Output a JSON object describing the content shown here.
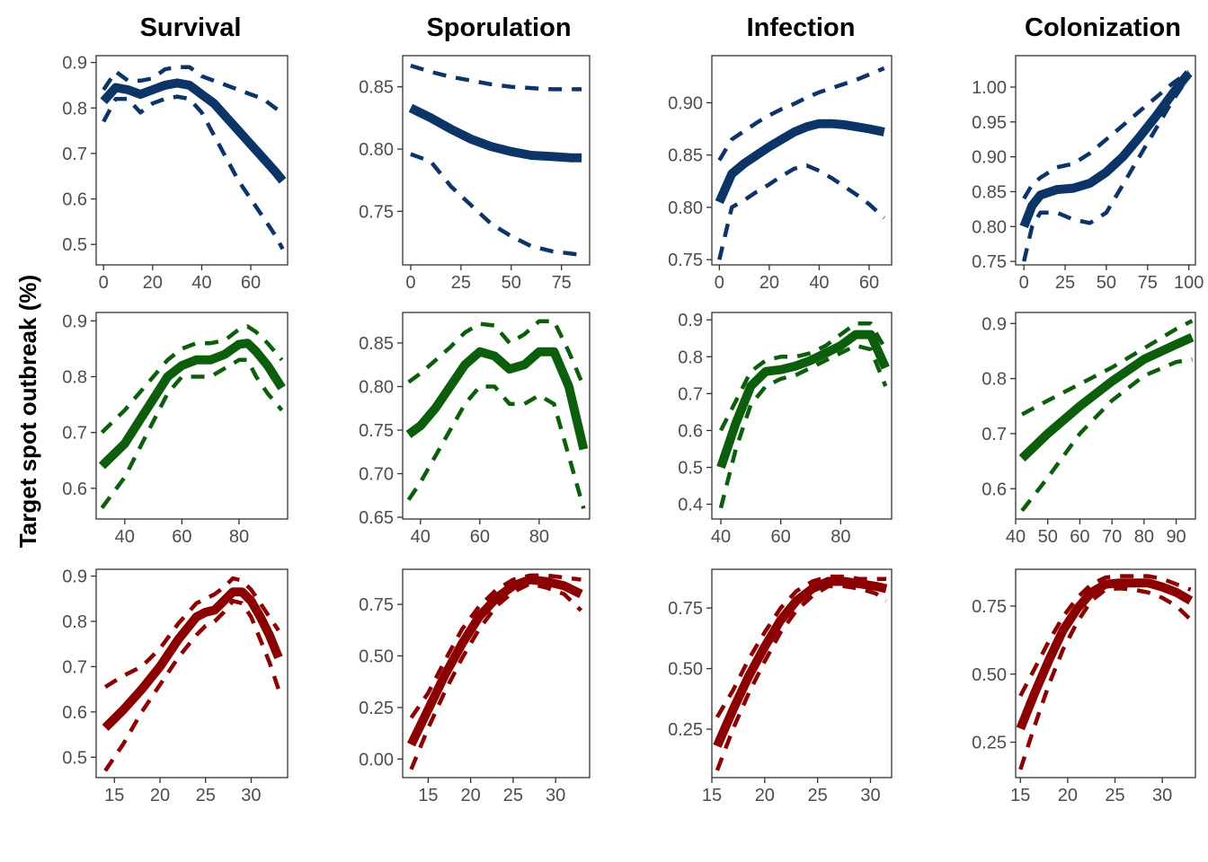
{
  "figure": {
    "column_titles": [
      "Survival",
      "Sporulation",
      "Infection",
      "Colonization"
    ],
    "y_axis_title": "Target spot outbreak (%)"
  },
  "colors": {
    "row1": "#0d3467",
    "row2": "#0c5e0c",
    "row3": "#8b0000"
  },
  "chart_data": [
    {
      "type": "line",
      "row": 1,
      "column": "Survival",
      "xlim": [
        -3,
        75
      ],
      "ylim": [
        0.455,
        0.915
      ],
      "xticks": [
        0,
        20,
        40,
        60
      ],
      "yticks": [
        0.5,
        0.6,
        0.7,
        0.8,
        0.9
      ],
      "ytick_labels": [
        "0.5",
        "0.6",
        "0.7",
        "0.8",
        "0.9"
      ],
      "x": [
        0,
        5,
        10,
        15,
        20,
        25,
        30,
        35,
        40,
        45,
        50,
        55,
        60,
        65,
        70,
        73
      ],
      "fit": [
        0.815,
        0.845,
        0.84,
        0.83,
        0.84,
        0.85,
        0.855,
        0.85,
        0.83,
        0.81,
        0.78,
        0.75,
        0.72,
        0.69,
        0.66,
        0.64
      ],
      "lower": [
        0.77,
        0.82,
        0.82,
        0.79,
        0.81,
        0.82,
        0.825,
        0.82,
        0.79,
        0.74,
        0.69,
        0.64,
        0.6,
        0.56,
        0.52,
        0.49
      ],
      "upper": [
        0.84,
        0.88,
        0.86,
        0.86,
        0.865,
        0.885,
        0.89,
        0.89,
        0.87,
        0.86,
        0.85,
        0.84,
        0.83,
        0.82,
        0.8,
        0.79
      ]
    },
    {
      "type": "line",
      "row": 1,
      "column": "Sporulation",
      "xlim": [
        -4,
        89
      ],
      "ylim": [
        0.707,
        0.875
      ],
      "xticks": [
        0,
        25,
        50,
        75
      ],
      "yticks": [
        0.75,
        0.8,
        0.85
      ],
      "ytick_labels": [
        "0.75",
        "0.80",
        "0.85"
      ],
      "x": [
        0,
        10,
        20,
        30,
        40,
        50,
        60,
        70,
        80,
        85
      ],
      "fit": [
        0.833,
        0.825,
        0.816,
        0.808,
        0.802,
        0.798,
        0.795,
        0.794,
        0.793,
        0.793
      ],
      "lower": [
        0.796,
        0.79,
        0.77,
        0.755,
        0.74,
        0.73,
        0.722,
        0.718,
        0.716,
        0.715
      ],
      "upper": [
        0.867,
        0.862,
        0.858,
        0.855,
        0.852,
        0.85,
        0.849,
        0.848,
        0.848,
        0.848
      ]
    },
    {
      "type": "line",
      "row": 1,
      "column": "Infection",
      "xlim": [
        -3,
        69
      ],
      "ylim": [
        0.745,
        0.945
      ],
      "xticks": [
        0,
        20,
        40,
        60
      ],
      "yticks": [
        0.75,
        0.8,
        0.85,
        0.9
      ],
      "ytick_labels": [
        "0.75",
        "0.80",
        "0.85",
        "0.90"
      ],
      "x": [
        0,
        5,
        10,
        15,
        20,
        25,
        30,
        35,
        40,
        45,
        50,
        55,
        60,
        66
      ],
      "fit": [
        0.805,
        0.832,
        0.842,
        0.85,
        0.858,
        0.865,
        0.872,
        0.877,
        0.88,
        0.88,
        0.879,
        0.877,
        0.875,
        0.872
      ],
      "lower": [
        0.75,
        0.8,
        0.807,
        0.815,
        0.822,
        0.83,
        0.837,
        0.84,
        0.835,
        0.828,
        0.82,
        0.812,
        0.803,
        0.79
      ],
      "upper": [
        0.845,
        0.865,
        0.873,
        0.881,
        0.888,
        0.894,
        0.899,
        0.905,
        0.91,
        0.914,
        0.918,
        0.922,
        0.927,
        0.933
      ]
    },
    {
      "type": "line",
      "row": 1,
      "column": "Colonization",
      "xlim": [
        -5,
        104
      ],
      "ylim": [
        0.745,
        1.045
      ],
      "xticks": [
        0,
        25,
        50,
        75,
        100
      ],
      "yticks": [
        0.75,
        0.8,
        0.85,
        0.9,
        0.95,
        1.0
      ],
      "ytick_labels": [
        "0.75",
        "0.80",
        "0.85",
        "0.90",
        "0.95",
        "1.00"
      ],
      "x": [
        0,
        5,
        10,
        20,
        30,
        40,
        50,
        60,
        70,
        80,
        90,
        100
      ],
      "fit": [
        0.8,
        0.83,
        0.845,
        0.853,
        0.855,
        0.862,
        0.878,
        0.9,
        0.928,
        0.958,
        0.99,
        1.02
      ],
      "lower": [
        0.75,
        0.8,
        0.82,
        0.82,
        0.81,
        0.805,
        0.82,
        0.86,
        0.9,
        0.94,
        0.98,
        1.015
      ],
      "upper": [
        0.84,
        0.86,
        0.87,
        0.885,
        0.89,
        0.905,
        0.925,
        0.945,
        0.965,
        0.985,
        1.005,
        1.022
      ]
    },
    {
      "type": "line",
      "row": 2,
      "column": "Survival",
      "xlim": [
        30,
        97
      ],
      "ylim": [
        0.545,
        0.915
      ],
      "xticks": [
        40,
        60,
        80
      ],
      "yticks": [
        0.6,
        0.7,
        0.8,
        0.9
      ],
      "ytick_labels": [
        "0.6",
        "0.7",
        "0.8",
        "0.9"
      ],
      "x": [
        32,
        40,
        45,
        50,
        55,
        60,
        65,
        70,
        75,
        80,
        83,
        86,
        90,
        95
      ],
      "fit": [
        0.64,
        0.68,
        0.72,
        0.76,
        0.8,
        0.82,
        0.83,
        0.83,
        0.84,
        0.858,
        0.86,
        0.845,
        0.82,
        0.78
      ],
      "lower": [
        0.565,
        0.62,
        0.67,
        0.72,
        0.77,
        0.8,
        0.8,
        0.8,
        0.815,
        0.83,
        0.83,
        0.8,
        0.77,
        0.74
      ],
      "upper": [
        0.7,
        0.74,
        0.77,
        0.8,
        0.83,
        0.85,
        0.86,
        0.86,
        0.865,
        0.885,
        0.89,
        0.88,
        0.86,
        0.83
      ]
    },
    {
      "type": "line",
      "row": 2,
      "column": "Sporulation",
      "xlim": [
        34,
        97
      ],
      "ylim": [
        0.648,
        0.885
      ],
      "xticks": [
        40,
        60,
        80
      ],
      "yticks": [
        0.65,
        0.7,
        0.75,
        0.8,
        0.85
      ],
      "ytick_labels": [
        "0.65",
        "0.70",
        "0.75",
        "0.80",
        "0.85"
      ],
      "x": [
        36,
        40,
        45,
        50,
        55,
        60,
        65,
        70,
        75,
        80,
        85,
        90,
        95
      ],
      "fit": [
        0.745,
        0.755,
        0.775,
        0.8,
        0.825,
        0.84,
        0.835,
        0.82,
        0.825,
        0.84,
        0.84,
        0.8,
        0.728
      ],
      "lower": [
        0.67,
        0.69,
        0.72,
        0.75,
        0.78,
        0.8,
        0.8,
        0.78,
        0.78,
        0.79,
        0.78,
        0.72,
        0.66
      ],
      "upper": [
        0.805,
        0.815,
        0.83,
        0.845,
        0.862,
        0.872,
        0.87,
        0.85,
        0.86,
        0.875,
        0.875,
        0.84,
        0.8
      ]
    },
    {
      "type": "line",
      "row": 2,
      "column": "Infection",
      "xlim": [
        37,
        97
      ],
      "ylim": [
        0.36,
        0.92
      ],
      "xticks": [
        40,
        60,
        80
      ],
      "yticks": [
        0.4,
        0.5,
        0.6,
        0.7,
        0.8,
        0.9
      ],
      "ytick_labels": [
        "0.4",
        "0.5",
        "0.6",
        "0.7",
        "0.8",
        "0.9"
      ],
      "x": [
        40,
        45,
        50,
        55,
        60,
        65,
        70,
        75,
        80,
        85,
        90,
        95
      ],
      "fit": [
        0.5,
        0.62,
        0.72,
        0.76,
        0.765,
        0.775,
        0.79,
        0.81,
        0.83,
        0.86,
        0.86,
        0.77
      ],
      "lower": [
        0.39,
        0.55,
        0.67,
        0.72,
        0.74,
        0.75,
        0.77,
        0.79,
        0.81,
        0.83,
        0.82,
        0.72
      ],
      "upper": [
        0.6,
        0.68,
        0.76,
        0.79,
        0.8,
        0.8,
        0.81,
        0.83,
        0.86,
        0.89,
        0.89,
        0.82
      ]
    },
    {
      "type": "line",
      "row": 2,
      "column": "Colonization",
      "xlim": [
        40,
        96
      ],
      "ylim": [
        0.545,
        0.92
      ],
      "xticks": [
        40,
        50,
        60,
        70,
        80,
        90
      ],
      "yticks": [
        0.6,
        0.7,
        0.8,
        0.9
      ],
      "ytick_labels": [
        "0.6",
        "0.7",
        "0.8",
        "0.9"
      ],
      "x": [
        42,
        50,
        60,
        70,
        80,
        90,
        95
      ],
      "fit": [
        0.655,
        0.7,
        0.75,
        0.795,
        0.835,
        0.862,
        0.875
      ],
      "lower": [
        0.56,
        0.62,
        0.7,
        0.76,
        0.805,
        0.83,
        0.835
      ],
      "upper": [
        0.735,
        0.76,
        0.79,
        0.82,
        0.855,
        0.89,
        0.905
      ]
    },
    {
      "type": "line",
      "row": 3,
      "column": "Survival",
      "xlim": [
        13,
        34
      ],
      "ylim": [
        0.455,
        0.915
      ],
      "xticks": [
        15,
        20,
        25,
        30
      ],
      "yticks": [
        0.5,
        0.6,
        0.7,
        0.8,
        0.9
      ],
      "ytick_labels": [
        "0.5",
        "0.6",
        "0.7",
        "0.8",
        "0.9"
      ],
      "x": [
        14,
        16,
        18,
        20,
        22,
        24,
        25,
        26,
        27,
        28,
        29,
        30,
        31,
        32,
        33
      ],
      "fit": [
        0.565,
        0.605,
        0.65,
        0.7,
        0.76,
        0.81,
        0.82,
        0.825,
        0.845,
        0.865,
        0.865,
        0.845,
        0.81,
        0.77,
        0.72
      ],
      "lower": [
        0.47,
        0.53,
        0.6,
        0.66,
        0.72,
        0.77,
        0.79,
        0.8,
        0.82,
        0.845,
        0.84,
        0.81,
        0.76,
        0.71,
        0.65
      ],
      "upper": [
        0.655,
        0.68,
        0.7,
        0.74,
        0.795,
        0.84,
        0.85,
        0.86,
        0.875,
        0.895,
        0.89,
        0.87,
        0.84,
        0.81,
        0.78
      ]
    },
    {
      "type": "line",
      "row": 3,
      "column": "Sporulation",
      "xlim": [
        12,
        34
      ],
      "ylim": [
        -0.09,
        0.92
      ],
      "xticks": [
        15,
        20,
        25,
        30
      ],
      "yticks": [
        0.0,
        0.25,
        0.5,
        0.75
      ],
      "ytick_labels": [
        "0.00",
        "0.25",
        "0.50",
        "0.75"
      ],
      "x": [
        13,
        15,
        17,
        19,
        21,
        23,
        25,
        27,
        29,
        31,
        33
      ],
      "fit": [
        0.07,
        0.24,
        0.41,
        0.56,
        0.69,
        0.78,
        0.84,
        0.87,
        0.86,
        0.84,
        0.8
      ],
      "lower": [
        -0.05,
        0.15,
        0.33,
        0.49,
        0.63,
        0.74,
        0.81,
        0.85,
        0.83,
        0.8,
        0.72
      ],
      "upper": [
        0.2,
        0.32,
        0.48,
        0.63,
        0.74,
        0.82,
        0.87,
        0.89,
        0.89,
        0.88,
        0.87
      ]
    },
    {
      "type": "line",
      "row": 3,
      "column": "Infection",
      "xlim": [
        15,
        32
      ],
      "ylim": [
        0.05,
        0.91
      ],
      "xticks": [
        15,
        20,
        25,
        30
      ],
      "yticks": [
        0.25,
        0.5,
        0.75
      ],
      "ytick_labels": [
        "0.25",
        "0.50",
        "0.75"
      ],
      "x": [
        15.5,
        17,
        18.5,
        20,
        21.5,
        23,
        24.5,
        26,
        27.5,
        29,
        30.5,
        31.5
      ],
      "fit": [
        0.18,
        0.33,
        0.47,
        0.59,
        0.7,
        0.78,
        0.83,
        0.86,
        0.86,
        0.85,
        0.84,
        0.83
      ],
      "lower": [
        0.08,
        0.25,
        0.4,
        0.53,
        0.65,
        0.74,
        0.8,
        0.84,
        0.84,
        0.83,
        0.81,
        0.78
      ],
      "upper": [
        0.3,
        0.41,
        0.54,
        0.65,
        0.75,
        0.82,
        0.86,
        0.88,
        0.88,
        0.87,
        0.87,
        0.87
      ]
    },
    {
      "type": "line",
      "row": 3,
      "column": "Colonization",
      "xlim": [
        14.5,
        33.5
      ],
      "ylim": [
        0.12,
        0.885
      ],
      "xticks": [
        15,
        20,
        25,
        30
      ],
      "yticks": [
        0.25,
        0.5,
        0.75
      ],
      "ytick_labels": [
        "0.25",
        "0.50",
        "0.75"
      ],
      "x": [
        15,
        16.5,
        18,
        19.5,
        21,
        22.5,
        24,
        25.5,
        27,
        28.5,
        30,
        31.5,
        33
      ],
      "fit": [
        0.3,
        0.43,
        0.55,
        0.66,
        0.74,
        0.8,
        0.83,
        0.835,
        0.835,
        0.835,
        0.82,
        0.8,
        0.77
      ],
      "lower": [
        0.15,
        0.31,
        0.46,
        0.59,
        0.69,
        0.77,
        0.81,
        0.815,
        0.81,
        0.8,
        0.78,
        0.75,
        0.7
      ],
      "upper": [
        0.42,
        0.52,
        0.62,
        0.71,
        0.78,
        0.83,
        0.855,
        0.86,
        0.86,
        0.86,
        0.85,
        0.83,
        0.81
      ]
    }
  ]
}
